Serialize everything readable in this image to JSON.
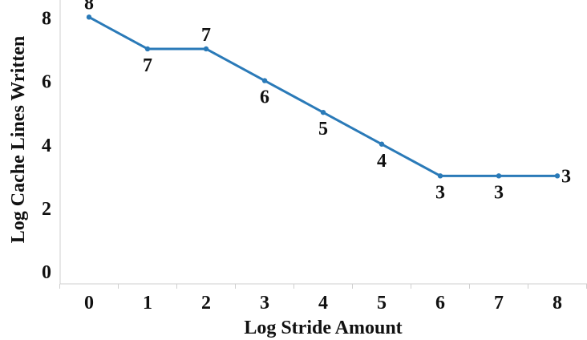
{
  "chart_data": {
    "type": "line",
    "title": "",
    "xlabel": "Log Stride Amount",
    "ylabel": "Log Cache Lines Written",
    "x": [
      0,
      1,
      2,
      3,
      4,
      5,
      6,
      7,
      8
    ],
    "x_tick_labels": [
      "0",
      "1",
      "2",
      "3",
      "4",
      "5",
      "6",
      "7",
      "8"
    ],
    "y_tick_labels": [
      "0",
      "2",
      "4",
      "6",
      "8"
    ],
    "y_ticks": [
      0,
      2,
      4,
      6,
      8
    ],
    "series": [
      {
        "values": [
          8,
          7,
          7,
          6,
          5,
          4,
          3,
          3,
          3
        ],
        "data_labels": [
          "8",
          "7",
          "7",
          "6",
          "5",
          "4",
          "3",
          "3",
          "3"
        ],
        "label_positions": [
          "above",
          "below",
          "above",
          "below",
          "below",
          "below",
          "below",
          "below",
          "right"
        ],
        "color": "#2a7ab8"
      }
    ],
    "xlim": [
      -0.5,
      8.5
    ],
    "ylim": [
      -0.4,
      8.8
    ],
    "grid": false,
    "legend": "none"
  }
}
